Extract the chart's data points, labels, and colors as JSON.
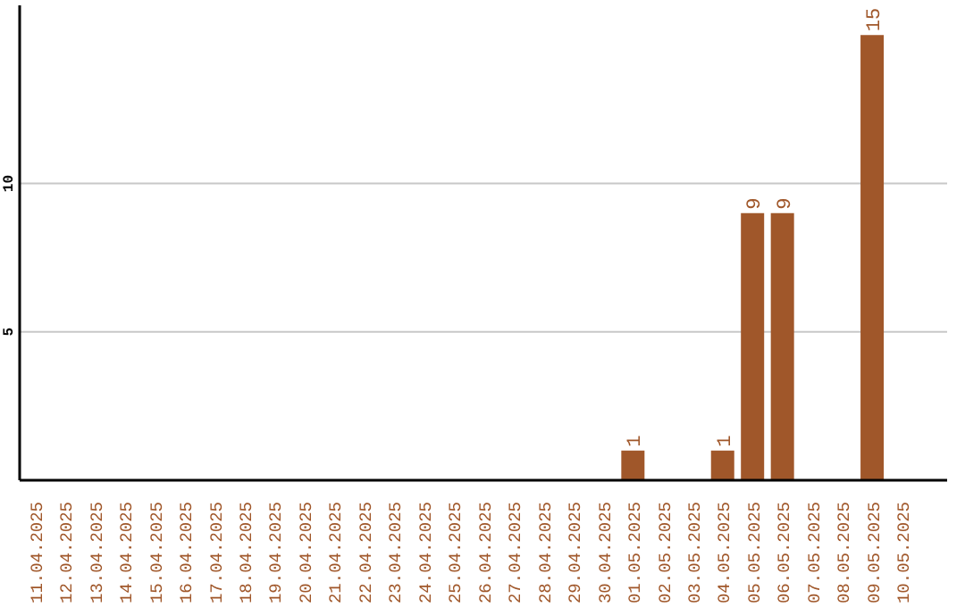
{
  "chart_data": {
    "type": "bar",
    "categories": [
      "11.04.2025",
      "12.04.2025",
      "13.04.2025",
      "14.04.2025",
      "15.04.2025",
      "16.04.2025",
      "17.04.2025",
      "18.04.2025",
      "19.04.2025",
      "20.04.2025",
      "21.04.2025",
      "22.04.2025",
      "23.04.2025",
      "24.04.2025",
      "25.04.2025",
      "26.04.2025",
      "27.04.2025",
      "28.04.2025",
      "29.04.2025",
      "30.04.2025",
      "01.05.2025",
      "02.05.2025",
      "03.05.2025",
      "04.05.2025",
      "05.05.2025",
      "06.05.2025",
      "07.05.2025",
      "08.05.2025",
      "09.05.2025",
      "10.05.2025"
    ],
    "values": [
      0,
      0,
      0,
      0,
      0,
      0,
      0,
      0,
      0,
      0,
      0,
      0,
      0,
      0,
      0,
      0,
      0,
      0,
      0,
      0,
      1,
      0,
      0,
      1,
      9,
      9,
      0,
      0,
      15,
      0
    ],
    "value_labels": [
      null,
      null,
      null,
      null,
      null,
      null,
      null,
      null,
      null,
      null,
      null,
      null,
      null,
      null,
      null,
      null,
      null,
      null,
      null,
      null,
      "1",
      null,
      null,
      "1",
      "9",
      "9",
      null,
      null,
      "15",
      null
    ],
    "color": "#a0572a",
    "ylim": [
      0,
      16
    ],
    "yticks": [
      5,
      10
    ],
    "grid": "y"
  }
}
